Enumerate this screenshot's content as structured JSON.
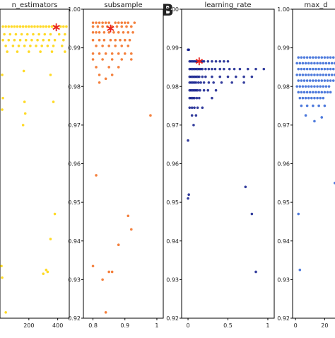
{
  "figure": {
    "panel_letter": "B"
  },
  "chart_data": [
    {
      "type": "scatter",
      "title": "n_estimators",
      "color": "#ffd400",
      "xlim": [
        0,
        480
      ],
      "ylim": [
        0.92,
        1.0
      ],
      "xticks": [
        200,
        400
      ],
      "yticks": [],
      "x": [
        20,
        40,
        60,
        80,
        100,
        120,
        140,
        160,
        180,
        200,
        220,
        240,
        260,
        280,
        300,
        320,
        340,
        360,
        380,
        420,
        440,
        460,
        30,
        70,
        110,
        150,
        190,
        230,
        270,
        310,
        350,
        410,
        450,
        20,
        60,
        100,
        140,
        180,
        220,
        260,
        300,
        340,
        380,
        440,
        40,
        90,
        130,
        170,
        210,
        250,
        290,
        330,
        370,
        430,
        50,
        120,
        200,
        280,
        360,
        450,
        15,
        165,
        350,
        20,
        170,
        370,
        15,
        175,
        160,
        380,
        350,
        10,
        320,
        15,
        300,
        330,
        40
      ],
      "y": [
        0.9955,
        0.9955,
        0.9955,
        0.9955,
        0.9955,
        0.9955,
        0.9955,
        0.9955,
        0.9955,
        0.9955,
        0.9955,
        0.9955,
        0.9955,
        0.9955,
        0.9955,
        0.9955,
        0.9955,
        0.9955,
        0.9955,
        0.9955,
        0.9955,
        0.9955,
        0.9935,
        0.9935,
        0.9935,
        0.9935,
        0.9935,
        0.9935,
        0.9935,
        0.9935,
        0.9935,
        0.9935,
        0.9935,
        0.992,
        0.992,
        0.992,
        0.992,
        0.992,
        0.992,
        0.992,
        0.992,
        0.992,
        0.992,
        0.992,
        0.9905,
        0.9905,
        0.9905,
        0.9905,
        0.9905,
        0.9905,
        0.9905,
        0.9905,
        0.9905,
        0.9905,
        0.989,
        0.989,
        0.989,
        0.989,
        0.989,
        0.989,
        0.983,
        0.984,
        0.983,
        0.977,
        0.976,
        0.976,
        0.974,
        0.973,
        0.97,
        0.947,
        0.9405,
        0.9335,
        0.9325,
        0.9305,
        0.9315,
        0.932,
        0.9215
      ],
      "best": {
        "x": 390,
        "y": 0.9953
      },
      "show_y_axis": false
    },
    {
      "type": "scatter",
      "title": "subsample",
      "color": "#f26a1b",
      "xlim": [
        0.77,
        1.02
      ],
      "ylim": [
        0.92,
        1.0
      ],
      "xticks": [
        0.8,
        0.9,
        1.0
      ],
      "yticks": [
        0.92,
        0.93,
        0.94,
        0.95,
        0.96,
        0.97,
        0.98,
        0.99,
        1.0
      ],
      "x": [
        0.8,
        0.81,
        0.82,
        0.83,
        0.84,
        0.85,
        0.87,
        0.88,
        0.89,
        0.9,
        0.91,
        0.93,
        0.8,
        0.815,
        0.83,
        0.845,
        0.86,
        0.875,
        0.89,
        0.905,
        0.92,
        0.8,
        0.81,
        0.82,
        0.835,
        0.85,
        0.865,
        0.88,
        0.895,
        0.91,
        0.925,
        0.8,
        0.82,
        0.835,
        0.855,
        0.87,
        0.885,
        0.9,
        0.915,
        0.81,
        0.83,
        0.85,
        0.87,
        0.89,
        0.91,
        0.8,
        0.82,
        0.84,
        0.86,
        0.88,
        0.9,
        0.92,
        0.8,
        0.83,
        0.86,
        0.89,
        0.92,
        0.81,
        0.85,
        0.88,
        0.82,
        0.86,
        0.82,
        0.84,
        0.98,
        0.81,
        0.91,
        0.92,
        0.88,
        0.8,
        0.85,
        0.86,
        0.83,
        0.84
      ],
      "y": [
        0.9965,
        0.9965,
        0.9965,
        0.9965,
        0.9965,
        0.9965,
        0.9965,
        0.9965,
        0.9965,
        0.9965,
        0.9965,
        0.9965,
        0.9955,
        0.9955,
        0.9955,
        0.9955,
        0.9955,
        0.9955,
        0.9955,
        0.9955,
        0.9955,
        0.994,
        0.994,
        0.994,
        0.994,
        0.994,
        0.994,
        0.994,
        0.994,
        0.994,
        0.994,
        0.992,
        0.992,
        0.992,
        0.992,
        0.992,
        0.992,
        0.992,
        0.992,
        0.9905,
        0.9905,
        0.9905,
        0.9905,
        0.9905,
        0.9905,
        0.9885,
        0.9885,
        0.9885,
        0.9885,
        0.9885,
        0.9885,
        0.9885,
        0.987,
        0.987,
        0.987,
        0.987,
        0.987,
        0.985,
        0.985,
        0.985,
        0.983,
        0.983,
        0.981,
        0.982,
        0.9725,
        0.957,
        0.9465,
        0.943,
        0.939,
        0.9335,
        0.932,
        0.932,
        0.93,
        0.9215
      ],
      "best": {
        "x": 0.855,
        "y": 0.995
      },
      "show_y_axis": true
    },
    {
      "type": "scatter",
      "title": "learning_rate",
      "color": "#0f1b8c",
      "xlim": [
        -0.08,
        1.08
      ],
      "ylim": [
        0.92,
        1.0
      ],
      "xticks": [
        0.0,
        0.5,
        1.0
      ],
      "yticks": [
        0.92,
        0.93,
        0.94,
        0.95,
        0.96,
        0.97,
        0.98,
        0.99,
        1.0
      ],
      "x": [
        0.02,
        0.04,
        0.06,
        0.08,
        0.1,
        0.12,
        0.14,
        0.16,
        0.18,
        0.2,
        0.25,
        0.3,
        0.35,
        0.4,
        0.45,
        0.5,
        0.02,
        0.04,
        0.06,
        0.08,
        0.1,
        0.12,
        0.14,
        0.16,
        0.18,
        0.22,
        0.26,
        0.3,
        0.34,
        0.4,
        0.45,
        0.52,
        0.58,
        0.65,
        0.75,
        0.85,
        0.95,
        0.02,
        0.04,
        0.06,
        0.08,
        0.1,
        0.12,
        0.14,
        0.18,
        0.22,
        0.3,
        0.4,
        0.5,
        0.6,
        0.7,
        0.8,
        0.02,
        0.04,
        0.06,
        0.08,
        0.1,
        0.13,
        0.16,
        0.2,
        0.26,
        0.32,
        0.42,
        0.55,
        0.7,
        0.02,
        0.04,
        0.06,
        0.08,
        0.1,
        0.12,
        0.15,
        0.2,
        0.25,
        0.35,
        0.02,
        0.04,
        0.06,
        0.08,
        0.11,
        0.14,
        0.3,
        0.02,
        0.05,
        0.08,
        0.12,
        0.18,
        0.05,
        0.1,
        0.07,
        0.0,
        0.01,
        0.0,
        0.01,
        0.0,
        0.72,
        0.8,
        0.85
      ],
      "y": [
        0.9865,
        0.9865,
        0.9865,
        0.9865,
        0.9865,
        0.9865,
        0.9865,
        0.9865,
        0.9865,
        0.9865,
        0.9865,
        0.9865,
        0.9865,
        0.9865,
        0.9865,
        0.9865,
        0.9845,
        0.9845,
        0.9845,
        0.9845,
        0.9845,
        0.9845,
        0.9845,
        0.9845,
        0.9845,
        0.9845,
        0.9845,
        0.9845,
        0.9845,
        0.9845,
        0.9845,
        0.9845,
        0.9845,
        0.9845,
        0.9845,
        0.9845,
        0.9845,
        0.9825,
        0.9825,
        0.9825,
        0.9825,
        0.9825,
        0.9825,
        0.9825,
        0.9825,
        0.9825,
        0.9825,
        0.9825,
        0.9825,
        0.9825,
        0.9825,
        0.9825,
        0.981,
        0.981,
        0.981,
        0.981,
        0.981,
        0.981,
        0.981,
        0.981,
        0.981,
        0.981,
        0.981,
        0.981,
        0.981,
        0.979,
        0.979,
        0.979,
        0.979,
        0.979,
        0.979,
        0.979,
        0.979,
        0.979,
        0.979,
        0.977,
        0.977,
        0.977,
        0.977,
        0.977,
        0.977,
        0.977,
        0.9745,
        0.9745,
        0.9745,
        0.9745,
        0.9745,
        0.9725,
        0.9725,
        0.97,
        0.9895,
        0.9895,
        0.966,
        0.952,
        0.951,
        0.954,
        0.947,
        0.932
      ],
      "best": {
        "x": 0.14,
        "y": 0.9865
      },
      "show_y_axis": true
    },
    {
      "type": "scatter",
      "title": "max_d",
      "color": "#2f63d6",
      "xlim": [
        -2,
        30
      ],
      "ylim": [
        0.92,
        1.0
      ],
      "xticks": [
        0,
        20
      ],
      "yticks": [
        0.92,
        0.93,
        0.94,
        0.95,
        0.96,
        0.97,
        0.98,
        0.99,
        1.0
      ],
      "x": [
        2,
        4,
        6,
        8,
        10,
        12,
        14,
        16,
        18,
        20,
        22,
        24,
        26,
        28,
        1,
        3,
        5,
        7,
        9,
        11,
        13,
        15,
        17,
        19,
        21,
        23,
        25,
        27,
        2,
        4,
        6,
        8,
        10,
        12,
        14,
        16,
        18,
        20,
        22,
        24,
        26,
        28,
        1,
        3,
        5,
        7,
        9,
        11,
        13,
        15,
        17,
        19,
        21,
        23,
        25,
        27,
        2,
        4,
        6,
        8,
        10,
        12,
        14,
        16,
        18,
        20,
        22,
        24,
        26,
        1,
        3,
        5,
        7,
        9,
        11,
        13,
        15,
        17,
        19,
        21,
        23,
        2,
        4,
        6,
        8,
        10,
        12,
        14,
        16,
        18,
        20,
        22,
        24,
        3,
        5,
        7,
        9,
        11,
        13,
        15,
        17,
        19,
        4,
        8,
        12,
        16,
        20,
        7,
        13,
        18,
        27,
        2,
        3
      ],
      "y": [
        0.9875,
        0.9875,
        0.9875,
        0.9875,
        0.9875,
        0.9875,
        0.9875,
        0.9875,
        0.9875,
        0.9875,
        0.9875,
        0.9875,
        0.9875,
        0.9875,
        0.986,
        0.986,
        0.986,
        0.986,
        0.986,
        0.986,
        0.986,
        0.986,
        0.986,
        0.986,
        0.986,
        0.986,
        0.986,
        0.986,
        0.9845,
        0.9845,
        0.9845,
        0.9845,
        0.9845,
        0.9845,
        0.9845,
        0.9845,
        0.9845,
        0.9845,
        0.9845,
        0.9845,
        0.9845,
        0.9845,
        0.983,
        0.983,
        0.983,
        0.983,
        0.983,
        0.983,
        0.983,
        0.983,
        0.983,
        0.983,
        0.983,
        0.983,
        0.983,
        0.983,
        0.9815,
        0.9815,
        0.9815,
        0.9815,
        0.9815,
        0.9815,
        0.9815,
        0.9815,
        0.9815,
        0.9815,
        0.9815,
        0.9815,
        0.9815,
        0.98,
        0.98,
        0.98,
        0.98,
        0.98,
        0.98,
        0.98,
        0.98,
        0.98,
        0.98,
        0.98,
        0.98,
        0.9785,
        0.9785,
        0.9785,
        0.9785,
        0.9785,
        0.9785,
        0.9785,
        0.9785,
        0.9785,
        0.9785,
        0.9785,
        0.9785,
        0.977,
        0.977,
        0.977,
        0.977,
        0.977,
        0.977,
        0.977,
        0.977,
        0.977,
        0.975,
        0.975,
        0.975,
        0.975,
        0.975,
        0.9725,
        0.971,
        0.972,
        0.955,
        0.947,
        0.9325
      ],
      "best": null,
      "show_y_axis": true
    }
  ]
}
